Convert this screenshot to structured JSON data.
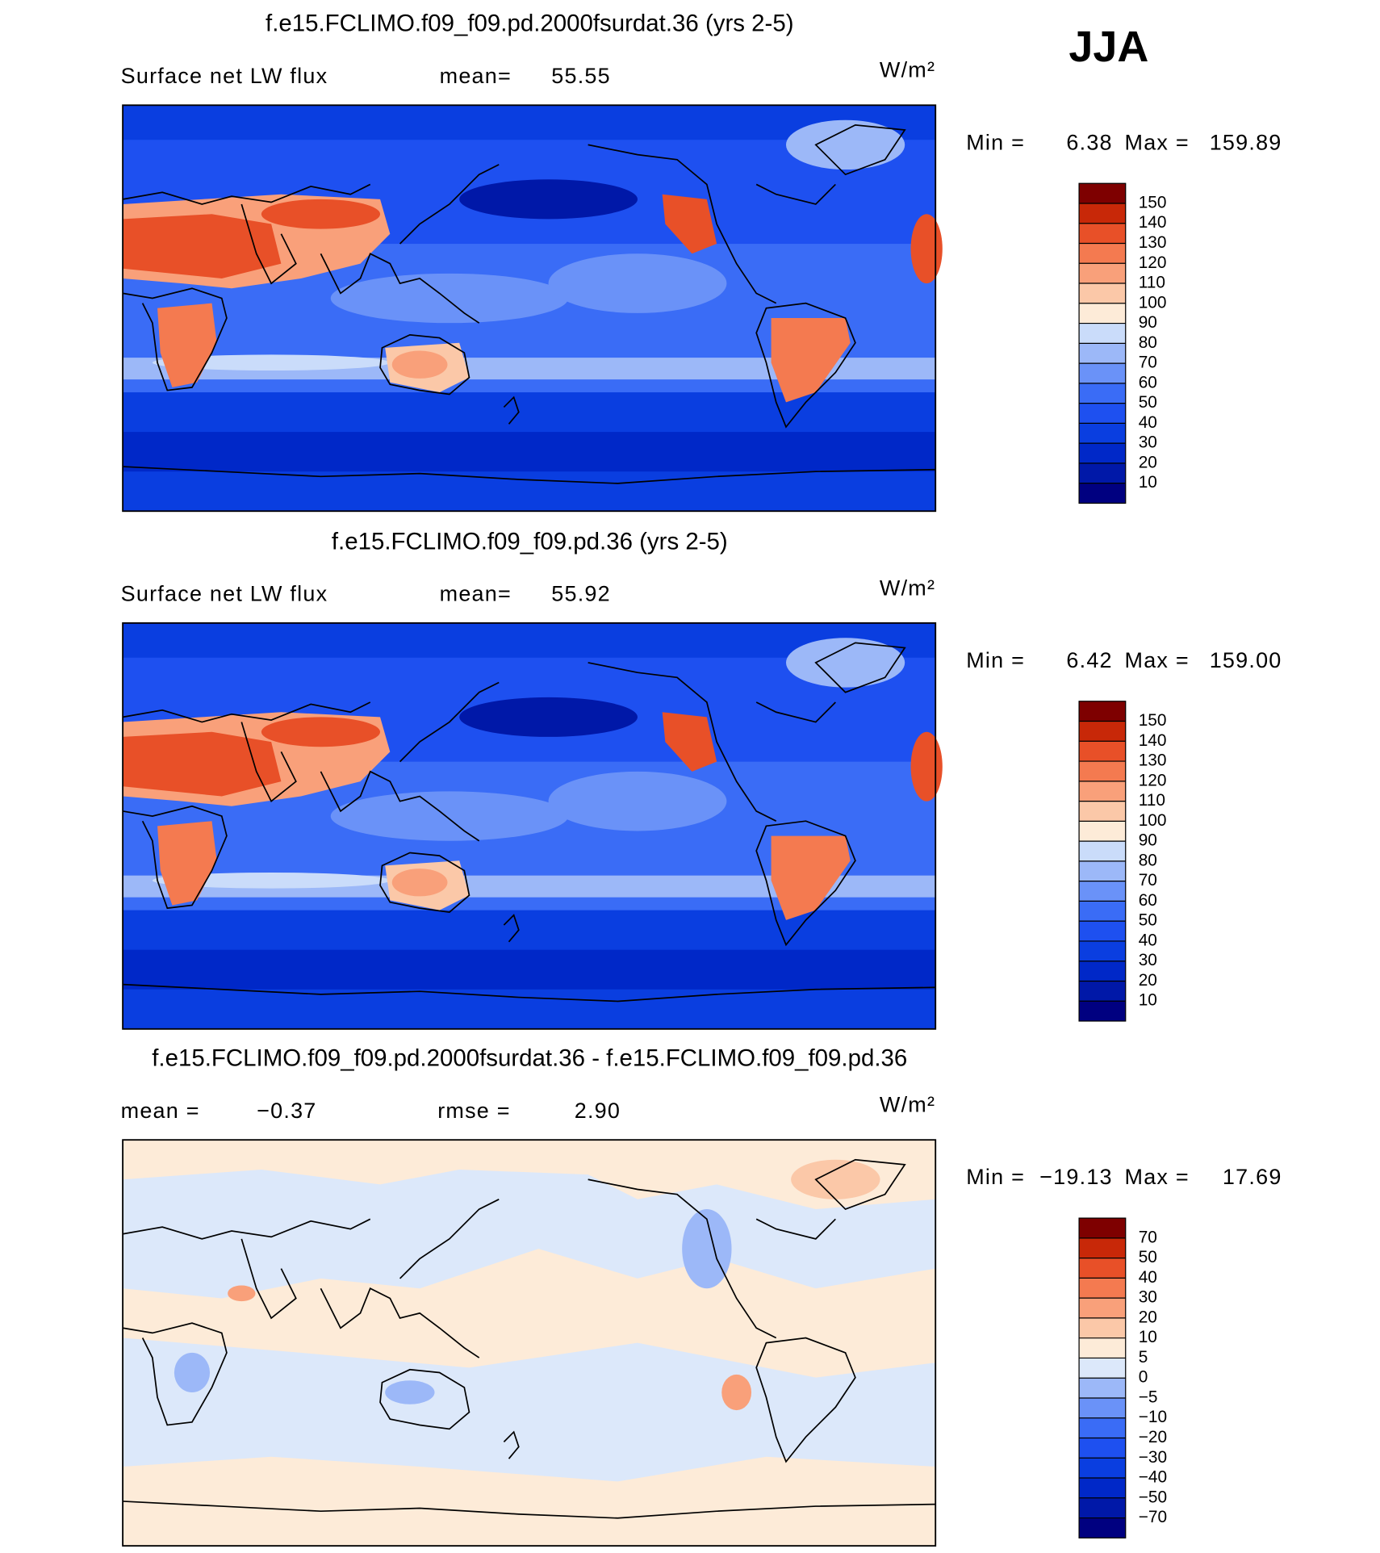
{
  "season": "JJA",
  "panels": [
    {
      "title": "f.e15.FCLIMO.f09_f09.pd.2000fsurdat.36 (yrs 2-5)",
      "field_name": "Surface net LW flux",
      "mean_label": "mean=",
      "mean": 55.55,
      "units": "W/m²",
      "min_label": "Min =",
      "min": 6.38,
      "max_label": "Max =",
      "max": 159.89,
      "levels": [
        10,
        20,
        30,
        40,
        50,
        60,
        70,
        80,
        90,
        100,
        110,
        120,
        130,
        140,
        150
      ],
      "colors": [
        "#000080",
        "#0018a8",
        "#0028c8",
        "#0a3ee0",
        "#1e50f0",
        "#3a6cf6",
        "#6a92f8",
        "#9cb8f8",
        "#cadcfa",
        "#fdebd8",
        "#fbc8a8",
        "#f9a07a",
        "#f47a50",
        "#e85028",
        "#c82808",
        "#7e0000"
      ]
    },
    {
      "title": "f.e15.FCLIMO.f09_f09.pd.36 (yrs 2-5)",
      "field_name": "Surface net LW flux",
      "mean_label": "mean=",
      "mean": 55.92,
      "units": "W/m²",
      "min_label": "Min =",
      "min": 6.42,
      "max_label": "Max =",
      "max": {
        "value": 159,
        "label": "159.00"
      },
      "levels": [
        10,
        20,
        30,
        40,
        50,
        60,
        70,
        80,
        90,
        100,
        110,
        120,
        130,
        140,
        150
      ],
      "colors": [
        "#000080",
        "#0018a8",
        "#0028c8",
        "#0a3ee0",
        "#1e50f0",
        "#3a6cf6",
        "#6a92f8",
        "#9cb8f8",
        "#cadcfa",
        "#fdebd8",
        "#fbc8a8",
        "#f9a07a",
        "#f47a50",
        "#e85028",
        "#c82808",
        "#7e0000"
      ]
    },
    {
      "title": "f.e15.FCLIMO.f09_f09.pd.2000fsurdat.36 - f.e15.FCLIMO.f09_f09.pd.36",
      "mean_label": "mean =",
      "mean": {
        "value": -0.37,
        "label": "−0.37"
      },
      "rmse_label": "rmse =",
      "rmse": {
        "value": 2.9,
        "label": "2.90"
      },
      "units": "W/m²",
      "min_label": "Min =",
      "min": {
        "value": -19.13,
        "label": "−19.13"
      },
      "max_label": "Max =",
      "max": 17.69,
      "levels": [
        {
          "value": -70,
          "label": "−70"
        },
        {
          "value": -50,
          "label": "−50"
        },
        {
          "value": -40,
          "label": "−40"
        },
        {
          "value": -30,
          "label": "−30"
        },
        {
          "value": -20,
          "label": "−20"
        },
        {
          "value": -10,
          "label": "−10"
        },
        {
          "value": -5,
          "label": "−5"
        },
        0,
        5,
        10,
        20,
        30,
        40,
        50,
        70
      ],
      "colors": [
        "#000080",
        "#0018a8",
        "#0028c8",
        "#0a3ee0",
        "#1e50f0",
        "#3a6cf6",
        "#6a92f8",
        "#9cb8f8",
        "#dce8fa",
        "#fdebd8",
        "#fbc8a8",
        "#f9a07a",
        "#f47a50",
        "#e85028",
        "#c82808",
        "#7e0000"
      ]
    }
  ]
}
